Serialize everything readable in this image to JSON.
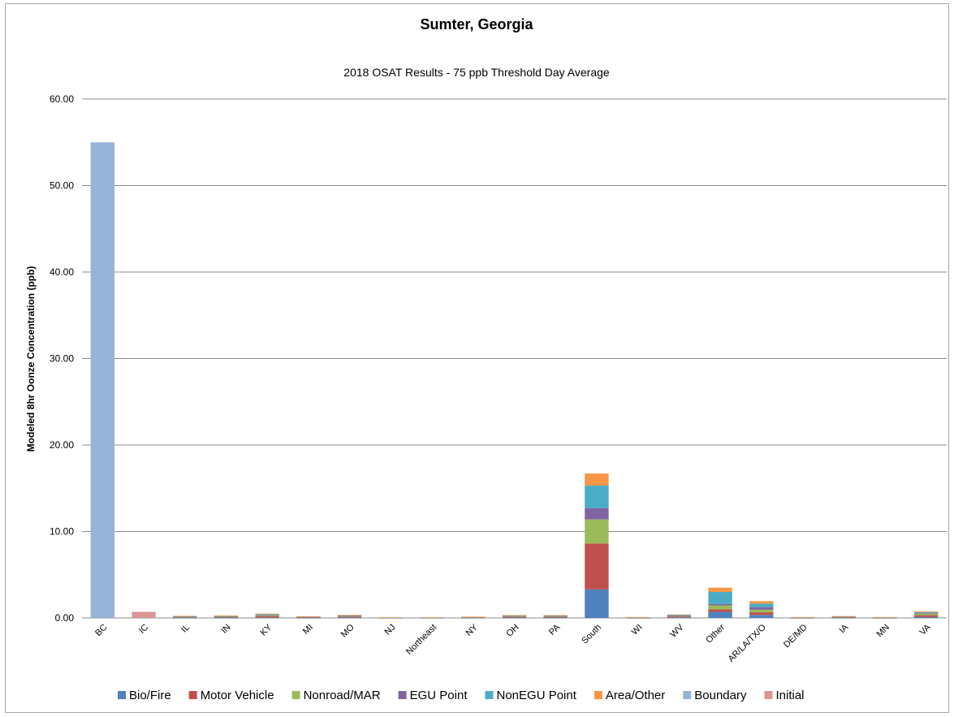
{
  "chart_data": {
    "type": "bar",
    "stacked": true,
    "title": "Sumter, Georgia",
    "subtitle": "2018 OSAT Results - 75 ppb Threshold Day Average",
    "xlabel": "",
    "ylabel": "Modeled 8hr Oonze Concentration (ppb)",
    "ylim": [
      0,
      60
    ],
    "yticks": [
      "0.00",
      "10.00",
      "20.00",
      "30.00",
      "40.00",
      "50.00",
      "60.00"
    ],
    "grid": true,
    "legend_position": "bottom",
    "categories": [
      "BC",
      "IC",
      "IL",
      "IN",
      "KY",
      "MI",
      "MO",
      "NJ",
      "Northeast",
      "NY",
      "OH",
      "PA",
      "South",
      "WI",
      "WV",
      "Other",
      "AR/LA/TX/O",
      "DE/MD",
      "IA",
      "MN",
      "VA"
    ],
    "series": [
      {
        "name": "Bio/Fire",
        "color": "#4f81bd",
        "values": [
          0,
          0,
          0.02,
          0.02,
          0.05,
          0.02,
          0.03,
          0.01,
          0.01,
          0.02,
          0.03,
          0.03,
          3.3,
          0.01,
          0.05,
          0.7,
          0.35,
          0.01,
          0.02,
          0.01,
          0.1
        ]
      },
      {
        "name": "Motor Vehicle",
        "color": "#c0504d",
        "values": [
          0,
          0,
          0.07,
          0.08,
          0.15,
          0.06,
          0.1,
          0.02,
          0.02,
          0.04,
          0.1,
          0.1,
          5.3,
          0.03,
          0.12,
          0.3,
          0.3,
          0.03,
          0.06,
          0.03,
          0.22
        ]
      },
      {
        "name": "Nonroad/MAR",
        "color": "#9bbb59",
        "values": [
          0,
          0,
          0.05,
          0.05,
          0.08,
          0.04,
          0.08,
          0.01,
          0.01,
          0.03,
          0.06,
          0.06,
          2.8,
          0.02,
          0.06,
          0.45,
          0.3,
          0.02,
          0.05,
          0.02,
          0.2
        ]
      },
      {
        "name": "EGU Point",
        "color": "#8064a2",
        "values": [
          0,
          0,
          0.04,
          0.06,
          0.08,
          0.02,
          0.04,
          0.01,
          0.01,
          0.02,
          0.05,
          0.05,
          1.3,
          0.01,
          0.05,
          0.15,
          0.3,
          0.01,
          0.02,
          0.01,
          0.08
        ]
      },
      {
        "name": "NonEGU Point",
        "color": "#4bacc6",
        "values": [
          0,
          0,
          0.03,
          0.03,
          0.05,
          0.02,
          0.05,
          0.01,
          0.01,
          0.02,
          0.04,
          0.04,
          2.6,
          0.01,
          0.05,
          1.4,
          0.4,
          0.01,
          0.03,
          0.01,
          0.07
        ]
      },
      {
        "name": "Area/Other",
        "color": "#f79646",
        "values": [
          0,
          0,
          0.03,
          0.04,
          0.09,
          0.03,
          0.05,
          0.01,
          0.01,
          0.02,
          0.05,
          0.05,
          1.4,
          0.02,
          0.07,
          0.5,
          0.3,
          0.02,
          0.03,
          0.02,
          0.08
        ]
      },
      {
        "name": "Boundary",
        "color": "#95b3d7",
        "values": [
          55.0,
          0,
          0,
          0,
          0,
          0,
          0,
          0,
          0,
          0,
          0,
          0,
          0,
          0,
          0,
          0,
          0,
          0,
          0,
          0,
          0
        ]
      },
      {
        "name": "Initial",
        "color": "#d99694",
        "values": [
          0,
          0.7,
          0,
          0,
          0,
          0,
          0,
          0,
          0,
          0,
          0,
          0,
          0,
          0,
          0,
          0,
          0,
          0,
          0,
          0,
          0
        ]
      }
    ]
  }
}
